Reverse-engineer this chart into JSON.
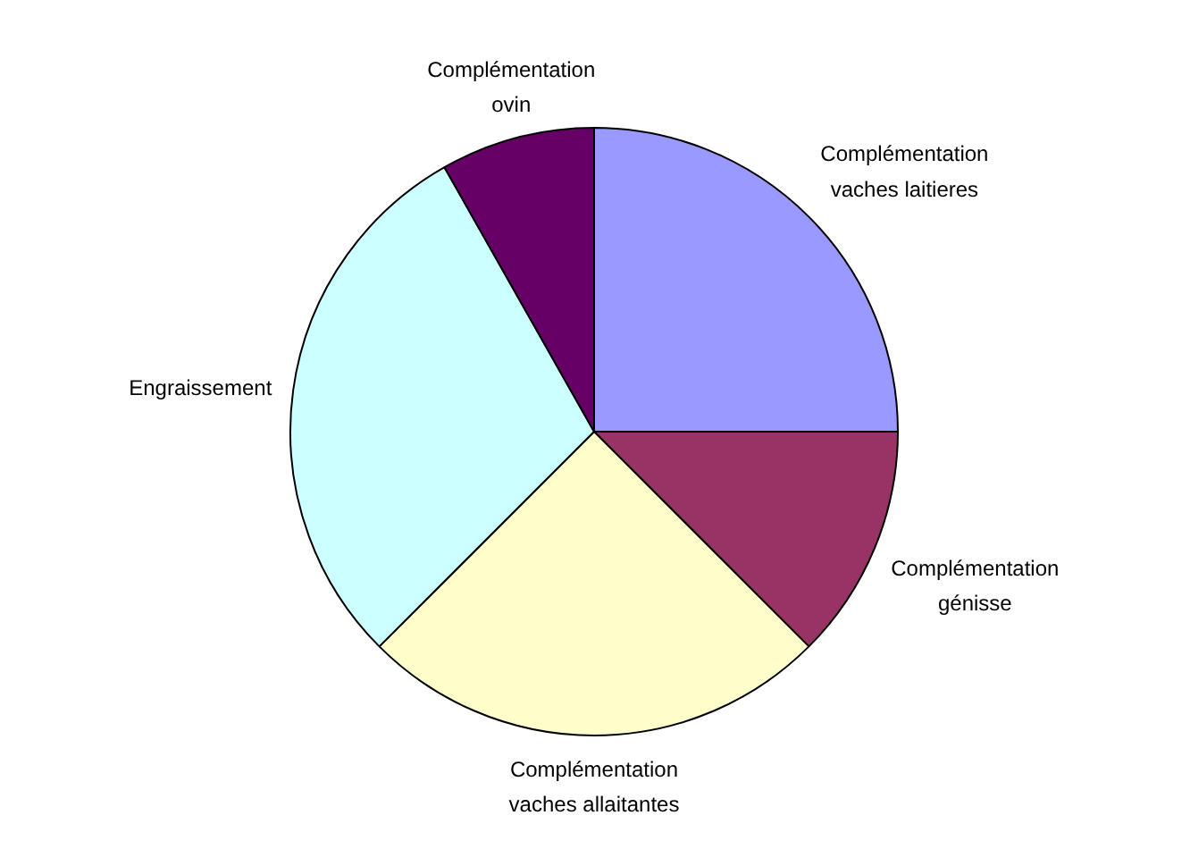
{
  "chart_data": {
    "type": "pie",
    "categories": [
      "Complémentation vaches laitieres",
      "Complémentation génisse",
      "Complémentation vaches allaitantes",
      "Engraissement",
      "Complémentation ovin"
    ],
    "values": [
      25,
      12.5,
      25,
      29.3,
      8.2
    ],
    "colors": [
      "#9999ff",
      "#993366",
      "#ffffcc",
      "#ccffff",
      "#660066"
    ]
  }
}
